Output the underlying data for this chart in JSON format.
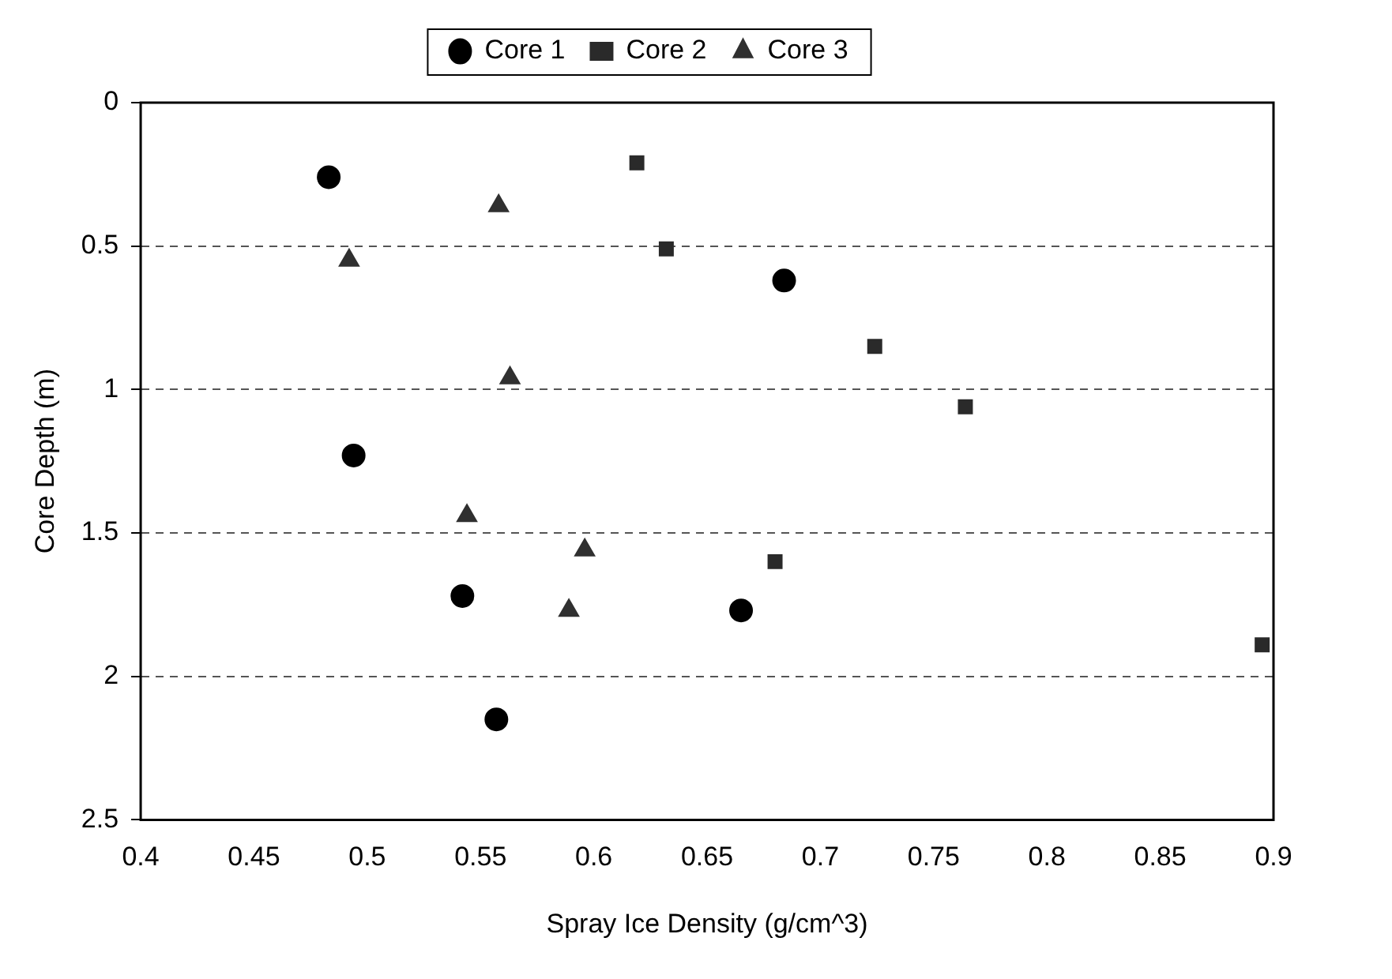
{
  "chart_data": {
    "type": "scatter",
    "xlabel": "Spray Ice Density (g/cm^3)",
    "ylabel": "Core Depth (m)",
    "xlim": [
      0.4,
      0.9
    ],
    "xticks": [
      0.4,
      0.45,
      0.5,
      0.55,
      0.6,
      0.65,
      0.7,
      0.75,
      0.8,
      0.85,
      0.9
    ],
    "ylim": [
      2.5,
      0
    ],
    "yticks": [
      0,
      0.5,
      1,
      1.5,
      2,
      2.5
    ],
    "grid": "y",
    "legend": "top",
    "line_style": "dashed",
    "series": [
      {
        "name": "Core 1",
        "color": "#000000",
        "marker": "circle",
        "x": [
          0.483,
          0.494,
          0.542,
          0.557,
          0.684,
          0.665
        ],
        "values": [
          0.26,
          1.23,
          1.72,
          2.15,
          0.62,
          1.77
        ]
      },
      {
        "name": "Core 2",
        "color": "#2a2a2a",
        "marker": "square",
        "x": [
          0.619,
          0.632,
          0.724,
          0.764,
          0.68,
          0.895
        ],
        "values": [
          0.21,
          0.51,
          0.85,
          1.06,
          1.6,
          1.89
        ]
      },
      {
        "name": "Core 3",
        "color": "#303030",
        "marker": "triangle",
        "x": [
          0.558,
          0.492,
          0.563,
          0.544,
          0.596,
          0.589
        ],
        "values": [
          0.36,
          0.55,
          0.96,
          1.44,
          1.56,
          1.77
        ]
      }
    ]
  }
}
